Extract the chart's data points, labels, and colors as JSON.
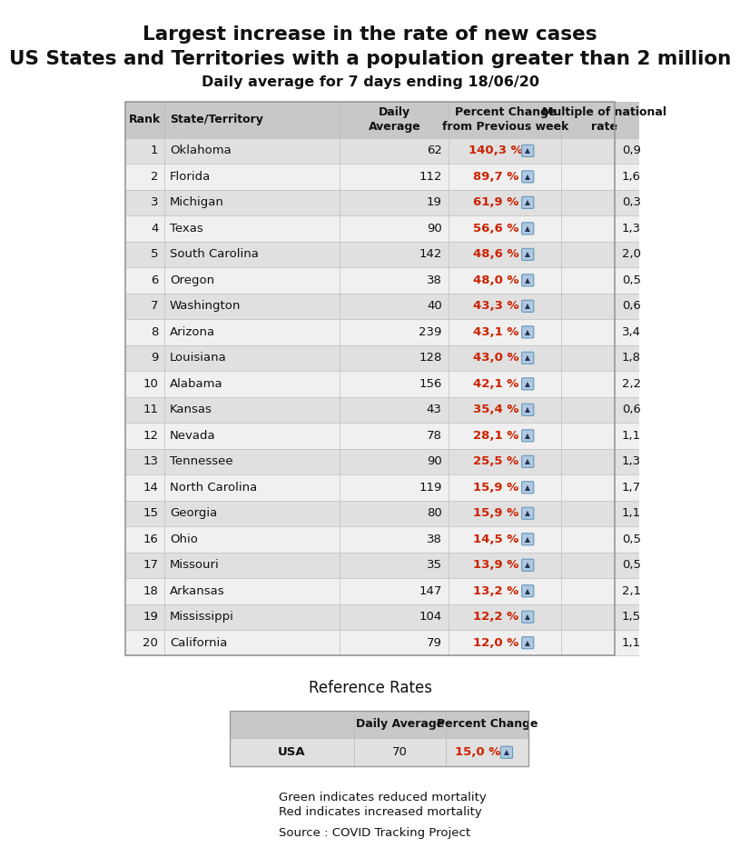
{
  "title1": "Largest increase in the rate of new cases",
  "title2": "US States and Territories with a population greater than 2 million",
  "subtitle": "Daily average for 7 days ending 18/06/20",
  "col_headers": [
    "Rank",
    "State/Territory",
    "Daily\nAverage",
    "Percent Change\nfrom Previous week",
    "Multiple of national\nrate"
  ],
  "rows": [
    [
      1,
      "Oklahoma",
      "62",
      "140,3 %",
      "0,9"
    ],
    [
      2,
      "Florida",
      "112",
      "89,7 %",
      "1,6"
    ],
    [
      3,
      "Michigan",
      "19",
      "61,9 %",
      "0,3"
    ],
    [
      4,
      "Texas",
      "90",
      "56,6 %",
      "1,3"
    ],
    [
      5,
      "South Carolina",
      "142",
      "48,6 %",
      "2,0"
    ],
    [
      6,
      "Oregon",
      "38",
      "48,0 %",
      "0,5"
    ],
    [
      7,
      "Washington",
      "40",
      "43,3 %",
      "0,6"
    ],
    [
      8,
      "Arizona",
      "239",
      "43,1 %",
      "3,4"
    ],
    [
      9,
      "Louisiana",
      "128",
      "43,0 %",
      "1,8"
    ],
    [
      10,
      "Alabama",
      "156",
      "42,1 %",
      "2,2"
    ],
    [
      11,
      "Kansas",
      "43",
      "35,4 %",
      "0,6"
    ],
    [
      12,
      "Nevada",
      "78",
      "28,1 %",
      "1,1"
    ],
    [
      13,
      "Tennessee",
      "90",
      "25,5 %",
      "1,3"
    ],
    [
      14,
      "North Carolina",
      "119",
      "15,9 %",
      "1,7"
    ],
    [
      15,
      "Georgia",
      "80",
      "15,9 %",
      "1,1"
    ],
    [
      16,
      "Ohio",
      "38",
      "14,5 %",
      "0,5"
    ],
    [
      17,
      "Missouri",
      "35",
      "13,9 %",
      "0,5"
    ],
    [
      18,
      "Arkansas",
      "147",
      "13,2 %",
      "2,1"
    ],
    [
      19,
      "Mississippi",
      "104",
      "12,2 %",
      "1,5"
    ],
    [
      20,
      "California",
      "79",
      "12,0 %",
      "1,1"
    ]
  ],
  "ref_label": "Reference Rates",
  "ref_headers": [
    "",
    "Daily Average",
    "Percent Change"
  ],
  "ref_row": [
    "USA",
    "70",
    "15,0 %"
  ],
  "note1": "Green indicates reduced mortality",
  "note2": "Red indicates increased mortality",
  "source": "Source : COVID Tracking Project",
  "header_bg": "#c8c8c8",
  "odd_row_bg": "#e0e0e0",
  "even_row_bg": "#f0f0f0",
  "red_color": "#cc2200",
  "text_color": "#111111",
  "background": "#ffffff",
  "border_color": "#999999",
  "cell_border": "#bbbbbb",
  "icon_bg": "#b0c8e0",
  "icon_border": "#6699bb"
}
